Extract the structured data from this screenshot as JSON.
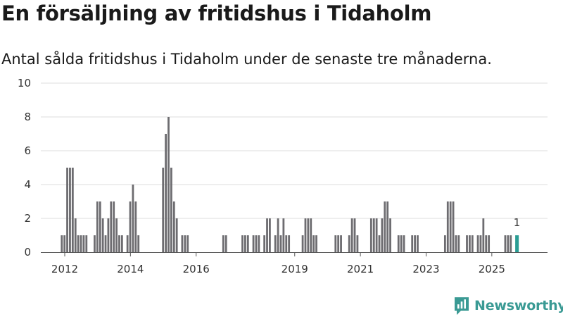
{
  "title": "En försäljning av fritidshus i Tidaholm",
  "subtitle": "Antal sålda fritidshus i Tidaholm under de senaste tre månaderna.",
  "brand": {
    "name": "Newsworthy",
    "color": "#3a9a94"
  },
  "colors": {
    "bar": "#6d6c70",
    "highlight": "#2a9d94",
    "grid": "#dddddd",
    "axis": "#555555"
  },
  "chart_data": {
    "type": "bar",
    "title": "En försäljning av fritidshus i Tidaholm",
    "xlabel": "",
    "ylabel": "",
    "ylim": [
      0,
      10
    ],
    "yticks": [
      "0",
      "2",
      "4",
      "6",
      "8",
      "10"
    ],
    "xticks": [
      {
        "label": "2012",
        "year": 2012
      },
      {
        "label": "2014",
        "year": 2014
      },
      {
        "label": "2016",
        "year": 2016
      },
      {
        "label": "2019",
        "year": 2019
      },
      {
        "label": "2021",
        "year": 2021
      },
      {
        "label": "2023",
        "year": 2023
      },
      {
        "label": "2025",
        "year": 2025
      }
    ],
    "start_period": "2012-01",
    "period": "month (rolling 3-month count)",
    "values": [
      0,
      0,
      1,
      1,
      5,
      5,
      5,
      2,
      1,
      1,
      1,
      1,
      0,
      0,
      1,
      3,
      3,
      2,
      1,
      2,
      3,
      3,
      2,
      1,
      1,
      0,
      1,
      3,
      4,
      3,
      1,
      0,
      0,
      0,
      0,
      0,
      0,
      0,
      0,
      5,
      7,
      8,
      5,
      3,
      2,
      0,
      1,
      1,
      1,
      0,
      0,
      0,
      0,
      0,
      0,
      0,
      0,
      0,
      0,
      0,
      0,
      1,
      1,
      0,
      0,
      0,
      0,
      0,
      1,
      1,
      1,
      0,
      1,
      1,
      1,
      0,
      1,
      2,
      2,
      0,
      1,
      2,
      1,
      2,
      1,
      1,
      0,
      0,
      0,
      0,
      1,
      2,
      2,
      2,
      1,
      1,
      0,
      0,
      0,
      0,
      0,
      0,
      1,
      1,
      1,
      0,
      0,
      1,
      2,
      2,
      1,
      0,
      0,
      0,
      0,
      2,
      2,
      2,
      1,
      2,
      3,
      3,
      2,
      0,
      0,
      1,
      1,
      1,
      0,
      0,
      1,
      1,
      1,
      0,
      0,
      0,
      0,
      0,
      0,
      0,
      0,
      0,
      1,
      3,
      3,
      3,
      1,
      1,
      0,
      0,
      1,
      1,
      1,
      0,
      1,
      1,
      2,
      1,
      1,
      0,
      0,
      0,
      0,
      0,
      1,
      1,
      1,
      0,
      1
    ],
    "highlight_last": true,
    "last_value_label": "1"
  }
}
